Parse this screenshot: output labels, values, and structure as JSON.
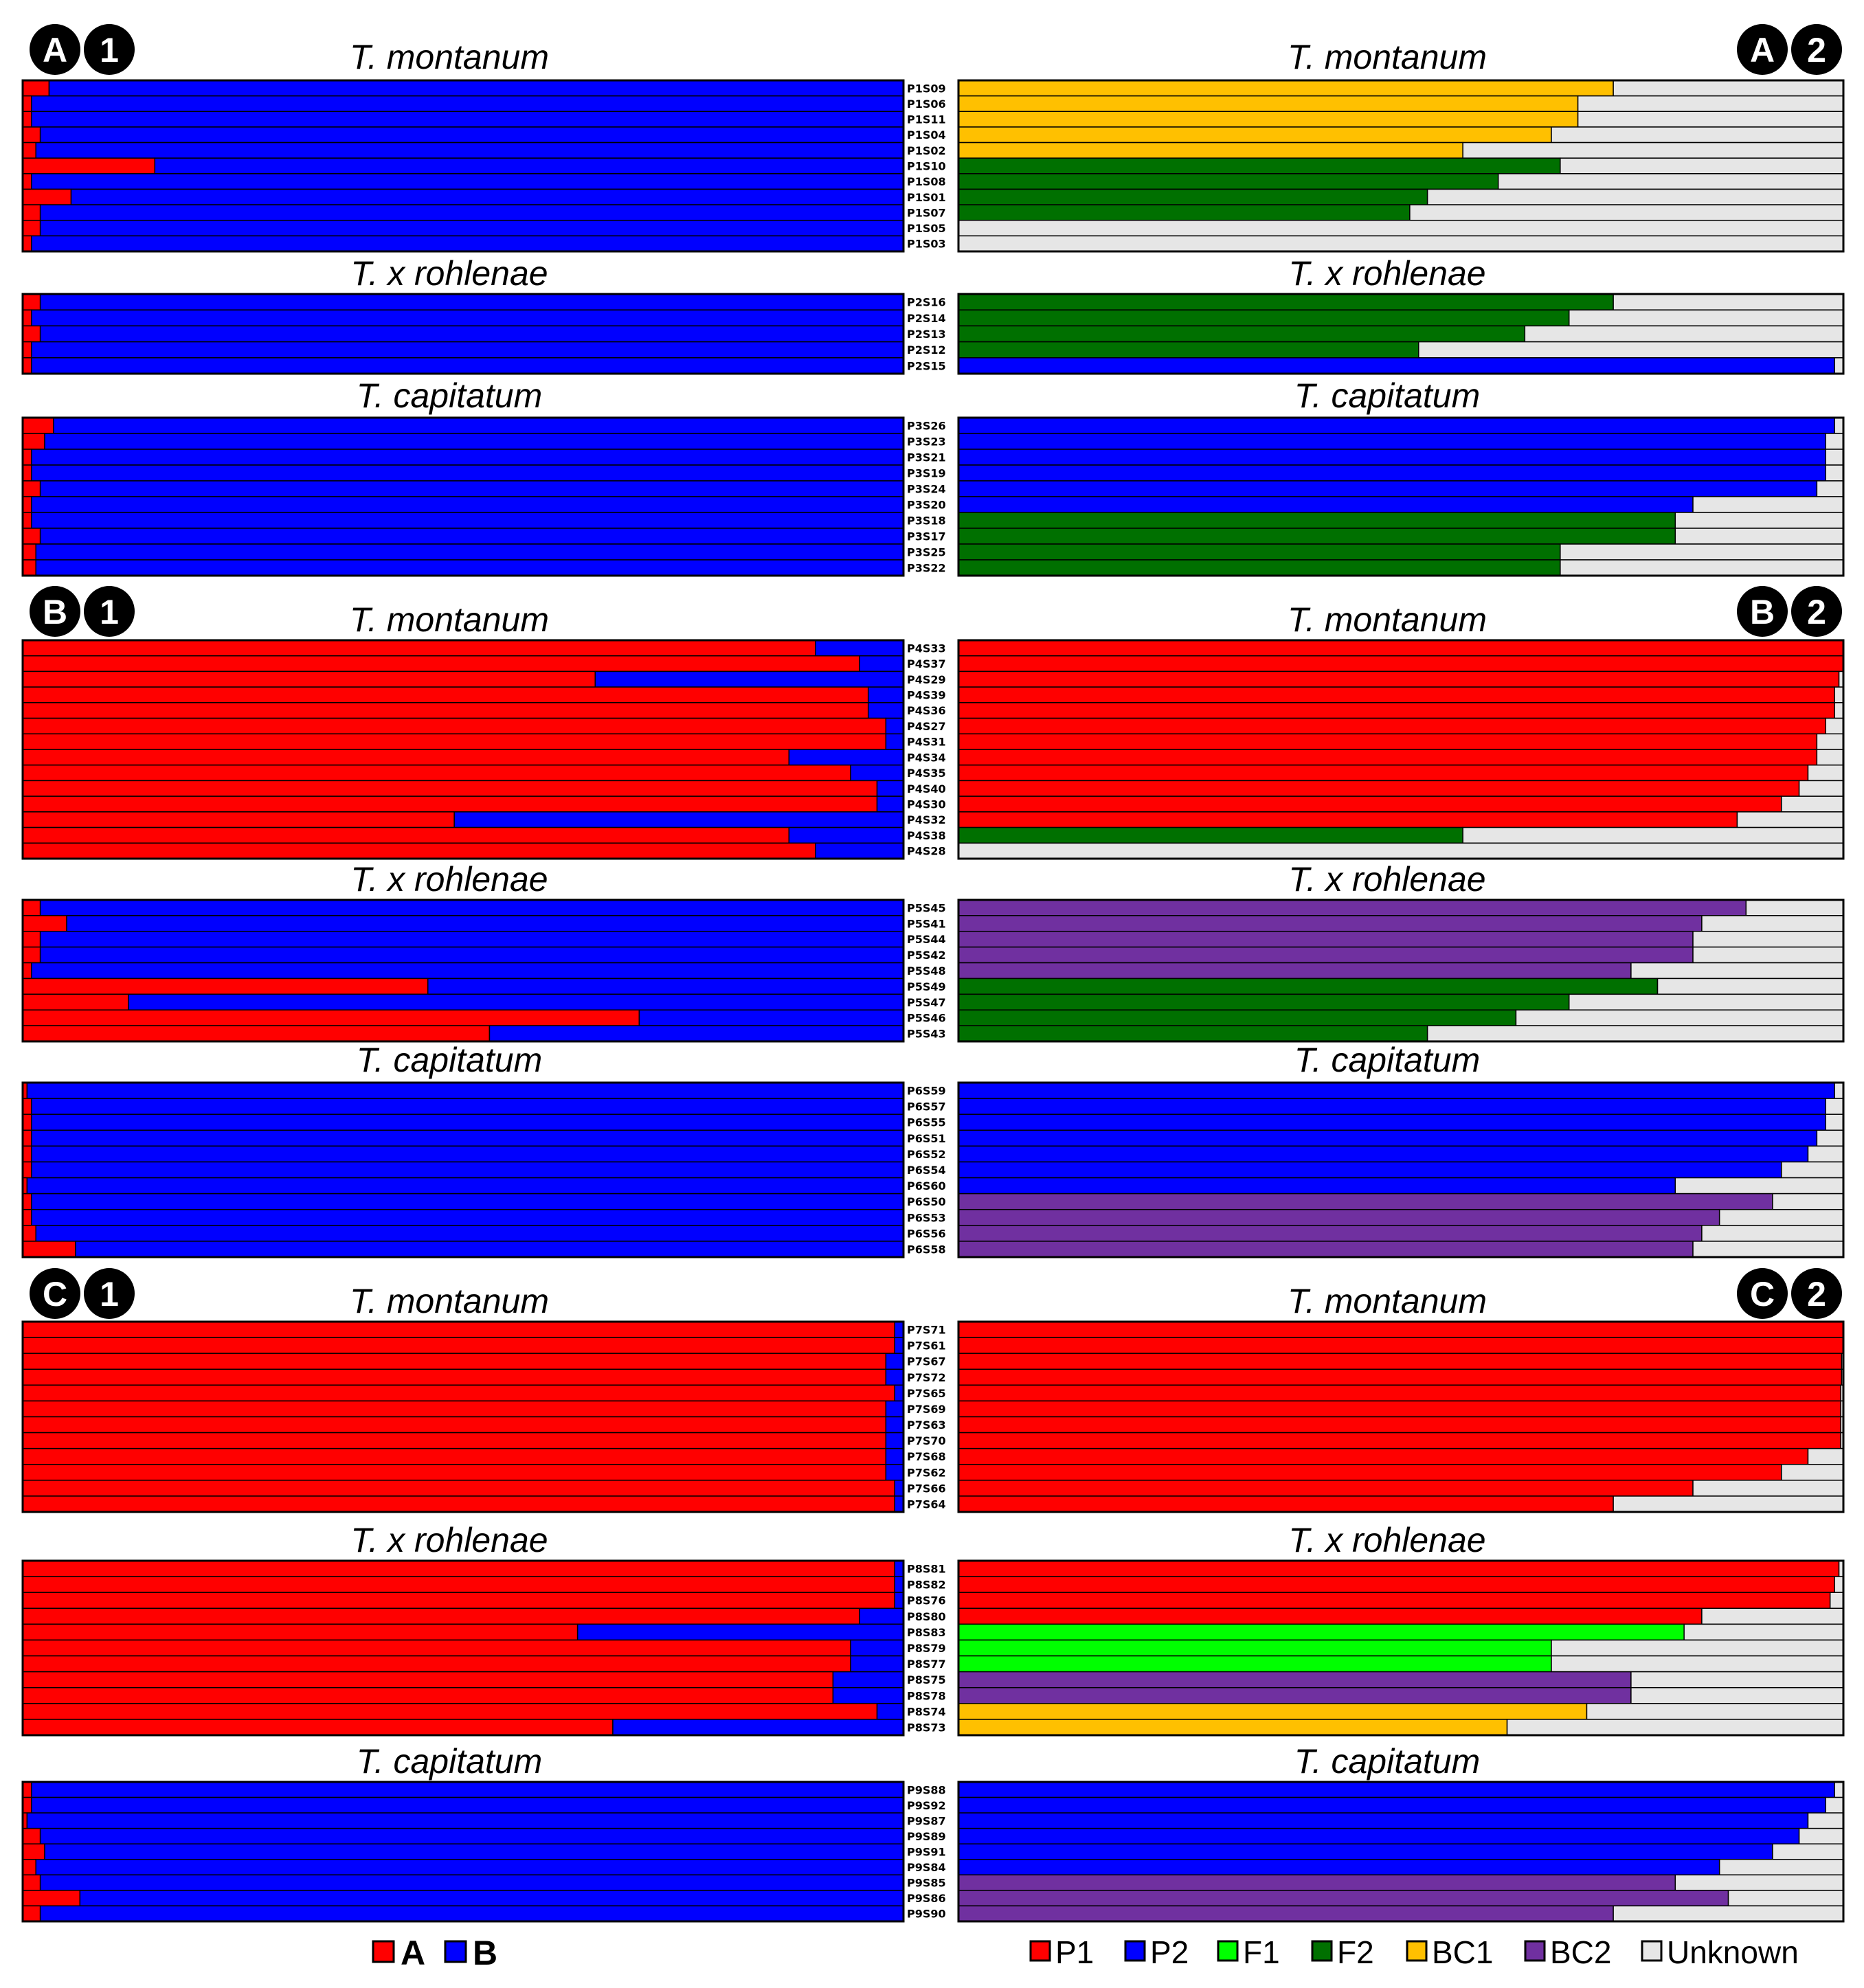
{
  "colors": {
    "A": "#ff0000",
    "B": "#0000ff",
    "P1": "#ff0000",
    "P2": "#0000ff",
    "F1": "#00ff00",
    "F2": "#007000",
    "BC1": "#ffc000",
    "BC2": "#7030a0",
    "Unknown": "#e6e6e6"
  },
  "badges": [
    {
      "id": "A1",
      "letter": "A",
      "number": "1"
    },
    {
      "id": "A2",
      "letter": "A",
      "number": "2"
    },
    {
      "id": "B1",
      "letter": "B",
      "number": "1"
    },
    {
      "id": "B2",
      "letter": "B",
      "number": "2"
    },
    {
      "id": "C1",
      "letter": "C",
      "number": "1"
    },
    {
      "id": "C2",
      "letter": "C",
      "number": "2"
    }
  ],
  "legend_left": [
    {
      "key": "A",
      "label": "A"
    },
    {
      "key": "B",
      "label": "B"
    }
  ],
  "legend_right": [
    {
      "key": "P1",
      "label": "P1"
    },
    {
      "key": "P2",
      "label": "P2"
    },
    {
      "key": "F1",
      "label": "F1"
    },
    {
      "key": "F2",
      "label": "F2"
    },
    {
      "key": "BC1",
      "label": "BC1"
    },
    {
      "key": "BC2",
      "label": "BC2"
    },
    {
      "key": "Unknown",
      "label": "Unknown"
    }
  ],
  "chart_data": {
    "type": "bar",
    "orientation": "horizontal-stacked",
    "xlim": [
      0,
      1
    ],
    "groups": [
      {
        "panel": "A",
        "title": "T. montanum",
        "samples": [
          {
            "id": "P1S09",
            "A": 0.03,
            "cat": "BC1",
            "q": 0.74
          },
          {
            "id": "P1S06",
            "A": 0.01,
            "cat": "BC1",
            "q": 0.7
          },
          {
            "id": "P1S11",
            "A": 0.01,
            "cat": "BC1",
            "q": 0.7
          },
          {
            "id": "P1S04",
            "A": 0.02,
            "cat": "BC1",
            "q": 0.67
          },
          {
            "id": "P1S02",
            "A": 0.015,
            "cat": "BC1",
            "q": 0.57
          },
          {
            "id": "P1S10",
            "A": 0.15,
            "cat": "F2",
            "q": 0.68
          },
          {
            "id": "P1S08",
            "A": 0.01,
            "cat": "F2",
            "q": 0.61
          },
          {
            "id": "P1S01",
            "A": 0.055,
            "cat": "F2",
            "q": 0.53
          },
          {
            "id": "P1S07",
            "A": 0.02,
            "cat": "F2",
            "q": 0.51
          },
          {
            "id": "P1S05",
            "A": 0.02,
            "cat": "Unknown",
            "q": 0
          },
          {
            "id": "P1S03",
            "A": 0.01,
            "cat": "Unknown",
            "q": 0
          }
        ]
      },
      {
        "panel": "A",
        "title": "T. x rohlenae",
        "samples": [
          {
            "id": "P2S16",
            "A": 0.02,
            "cat": "F2",
            "q": 0.74
          },
          {
            "id": "P2S14",
            "A": 0.01,
            "cat": "F2",
            "q": 0.69
          },
          {
            "id": "P2S13",
            "A": 0.02,
            "cat": "F2",
            "q": 0.64
          },
          {
            "id": "P2S12",
            "A": 0.01,
            "cat": "F2",
            "q": 0.52
          },
          {
            "id": "P2S15",
            "A": 0.01,
            "cat": "P2",
            "q": 0.99
          }
        ]
      },
      {
        "panel": "A",
        "title": "T. capitatum",
        "samples": [
          {
            "id": "P3S26",
            "A": 0.035,
            "cat": "P2",
            "q": 0.99
          },
          {
            "id": "P3S23",
            "A": 0.025,
            "cat": "P2",
            "q": 0.98
          },
          {
            "id": "P3S21",
            "A": 0.01,
            "cat": "P2",
            "q": 0.98
          },
          {
            "id": "P3S19",
            "A": 0.01,
            "cat": "P2",
            "q": 0.98
          },
          {
            "id": "P3S24",
            "A": 0.02,
            "cat": "P2",
            "q": 0.97
          },
          {
            "id": "P3S20",
            "A": 0.01,
            "cat": "P2",
            "q": 0.83
          },
          {
            "id": "P3S18",
            "A": 0.01,
            "cat": "F2",
            "q": 0.81
          },
          {
            "id": "P3S17",
            "A": 0.02,
            "cat": "F2",
            "q": 0.81
          },
          {
            "id": "P3S25",
            "A": 0.015,
            "cat": "F2",
            "q": 0.68
          },
          {
            "id": "P3S22",
            "A": 0.015,
            "cat": "F2",
            "q": 0.68
          }
        ]
      },
      {
        "panel": "B",
        "title": "T. montanum",
        "samples": [
          {
            "id": "P4S33",
            "A": 0.9,
            "cat": "P1",
            "q": 1.0
          },
          {
            "id": "P4S37",
            "A": 0.95,
            "cat": "P1",
            "q": 1.0
          },
          {
            "id": "P4S29",
            "A": 0.65,
            "cat": "P1",
            "q": 0.995
          },
          {
            "id": "P4S39",
            "A": 0.96,
            "cat": "P1",
            "q": 0.99
          },
          {
            "id": "P4S36",
            "A": 0.96,
            "cat": "P1",
            "q": 0.99
          },
          {
            "id": "P4S27",
            "A": 0.98,
            "cat": "P1",
            "q": 0.98
          },
          {
            "id": "P4S31",
            "A": 0.98,
            "cat": "P1",
            "q": 0.97
          },
          {
            "id": "P4S34",
            "A": 0.87,
            "cat": "P1",
            "q": 0.97
          },
          {
            "id": "P4S35",
            "A": 0.94,
            "cat": "P1",
            "q": 0.96
          },
          {
            "id": "P4S40",
            "A": 0.97,
            "cat": "P1",
            "q": 0.95
          },
          {
            "id": "P4S30",
            "A": 0.97,
            "cat": "P1",
            "q": 0.93
          },
          {
            "id": "P4S32",
            "A": 0.49,
            "cat": "P1",
            "q": 0.88
          },
          {
            "id": "P4S38",
            "A": 0.87,
            "cat": "F2",
            "q": 0.57
          },
          {
            "id": "P4S28",
            "A": 0.9,
            "cat": "Unknown",
            "q": 0
          }
        ]
      },
      {
        "panel": "B",
        "title": "T. x rohlenae",
        "samples": [
          {
            "id": "P5S45",
            "A": 0.02,
            "cat": "BC2",
            "q": 0.89
          },
          {
            "id": "P5S41",
            "A": 0.05,
            "cat": "BC2",
            "q": 0.84
          },
          {
            "id": "P5S44",
            "A": 0.02,
            "cat": "BC2",
            "q": 0.83
          },
          {
            "id": "P5S42",
            "A": 0.02,
            "cat": "BC2",
            "q": 0.83
          },
          {
            "id": "P5S48",
            "A": 0.01,
            "cat": "BC2",
            "q": 0.76
          },
          {
            "id": "P5S49",
            "A": 0.46,
            "cat": "F2",
            "q": 0.79
          },
          {
            "id": "P5S47",
            "A": 0.12,
            "cat": "F2",
            "q": 0.69
          },
          {
            "id": "P5S46",
            "A": 0.7,
            "cat": "F2",
            "q": 0.63
          },
          {
            "id": "P5S43",
            "A": 0.53,
            "cat": "F2",
            "q": 0.53
          }
        ]
      },
      {
        "panel": "B",
        "title": "T. capitatum",
        "samples": [
          {
            "id": "P6S59",
            "A": 0.005,
            "cat": "P2",
            "q": 0.99
          },
          {
            "id": "P6S57",
            "A": 0.01,
            "cat": "P2",
            "q": 0.98
          },
          {
            "id": "P6S55",
            "A": 0.01,
            "cat": "P2",
            "q": 0.98
          },
          {
            "id": "P6S51",
            "A": 0.01,
            "cat": "P2",
            "q": 0.97
          },
          {
            "id": "P6S52",
            "A": 0.01,
            "cat": "P2",
            "q": 0.96
          },
          {
            "id": "P6S54",
            "A": 0.01,
            "cat": "P2",
            "q": 0.93
          },
          {
            "id": "P6S60",
            "A": 0.005,
            "cat": "P2",
            "q": 0.81
          },
          {
            "id": "P6S50",
            "A": 0.01,
            "cat": "BC2",
            "q": 0.92
          },
          {
            "id": "P6S53",
            "A": 0.01,
            "cat": "BC2",
            "q": 0.86
          },
          {
            "id": "P6S56",
            "A": 0.015,
            "cat": "BC2",
            "q": 0.84
          },
          {
            "id": "P6S58",
            "A": 0.06,
            "cat": "BC2",
            "q": 0.83
          }
        ]
      },
      {
        "panel": "C",
        "title": "T. montanum",
        "samples": [
          {
            "id": "P7S71",
            "A": 0.99,
            "cat": "P1",
            "q": 1.0
          },
          {
            "id": "P7S61",
            "A": 0.99,
            "cat": "P1",
            "q": 1.0
          },
          {
            "id": "P7S67",
            "A": 0.98,
            "cat": "P1",
            "q": 0.998
          },
          {
            "id": "P7S72",
            "A": 0.98,
            "cat": "P1",
            "q": 0.998
          },
          {
            "id": "P7S65",
            "A": 0.99,
            "cat": "P1",
            "q": 0.997
          },
          {
            "id": "P7S69",
            "A": 0.98,
            "cat": "P1",
            "q": 0.997
          },
          {
            "id": "P7S63",
            "A": 0.98,
            "cat": "P1",
            "q": 0.997
          },
          {
            "id": "P7S70",
            "A": 0.98,
            "cat": "P1",
            "q": 0.997
          },
          {
            "id": "P7S68",
            "A": 0.98,
            "cat": "P1",
            "q": 0.96
          },
          {
            "id": "P7S62",
            "A": 0.98,
            "cat": "P1",
            "q": 0.93
          },
          {
            "id": "P7S66",
            "A": 0.99,
            "cat": "P1",
            "q": 0.83
          },
          {
            "id": "P7S64",
            "A": 0.99,
            "cat": "P1",
            "q": 0.74
          }
        ]
      },
      {
        "panel": "C",
        "title": "T. x rohlenae",
        "samples": [
          {
            "id": "P8S81",
            "A": 0.99,
            "cat": "P1",
            "q": 0.995
          },
          {
            "id": "P8S82",
            "A": 0.99,
            "cat": "P1",
            "q": 0.99
          },
          {
            "id": "P8S76",
            "A": 0.99,
            "cat": "P1",
            "q": 0.985
          },
          {
            "id": "P8S80",
            "A": 0.95,
            "cat": "P1",
            "q": 0.84
          },
          {
            "id": "P8S83",
            "A": 0.63,
            "cat": "F1",
            "q": 0.82
          },
          {
            "id": "P8S79",
            "A": 0.94,
            "cat": "F1",
            "q": 0.67
          },
          {
            "id": "P8S77",
            "A": 0.94,
            "cat": "F1",
            "q": 0.67
          },
          {
            "id": "P8S75",
            "A": 0.92,
            "cat": "BC2",
            "q": 0.76
          },
          {
            "id": "P8S78",
            "A": 0.92,
            "cat": "BC2",
            "q": 0.76
          },
          {
            "id": "P8S74",
            "A": 0.97,
            "cat": "BC1",
            "q": 0.71
          },
          {
            "id": "P8S73",
            "A": 0.67,
            "cat": "BC1",
            "q": 0.62
          }
        ]
      },
      {
        "panel": "C",
        "title": "T. capitatum",
        "samples": [
          {
            "id": "P9S88",
            "A": 0.01,
            "cat": "P2",
            "q": 0.99
          },
          {
            "id": "P9S92",
            "A": 0.01,
            "cat": "P2",
            "q": 0.98
          },
          {
            "id": "P9S87",
            "A": 0.005,
            "cat": "P2",
            "q": 0.96
          },
          {
            "id": "P9S89",
            "A": 0.02,
            "cat": "P2",
            "q": 0.95
          },
          {
            "id": "P9S91",
            "A": 0.025,
            "cat": "P2",
            "q": 0.92
          },
          {
            "id": "P9S84",
            "A": 0.015,
            "cat": "P2",
            "q": 0.86
          },
          {
            "id": "P9S85",
            "A": 0.02,
            "cat": "BC2",
            "q": 0.81
          },
          {
            "id": "P9S86",
            "A": 0.065,
            "cat": "BC2",
            "q": 0.87
          },
          {
            "id": "P9S90",
            "A": 0.02,
            "cat": "BC2",
            "q": 0.74
          }
        ]
      }
    ]
  }
}
